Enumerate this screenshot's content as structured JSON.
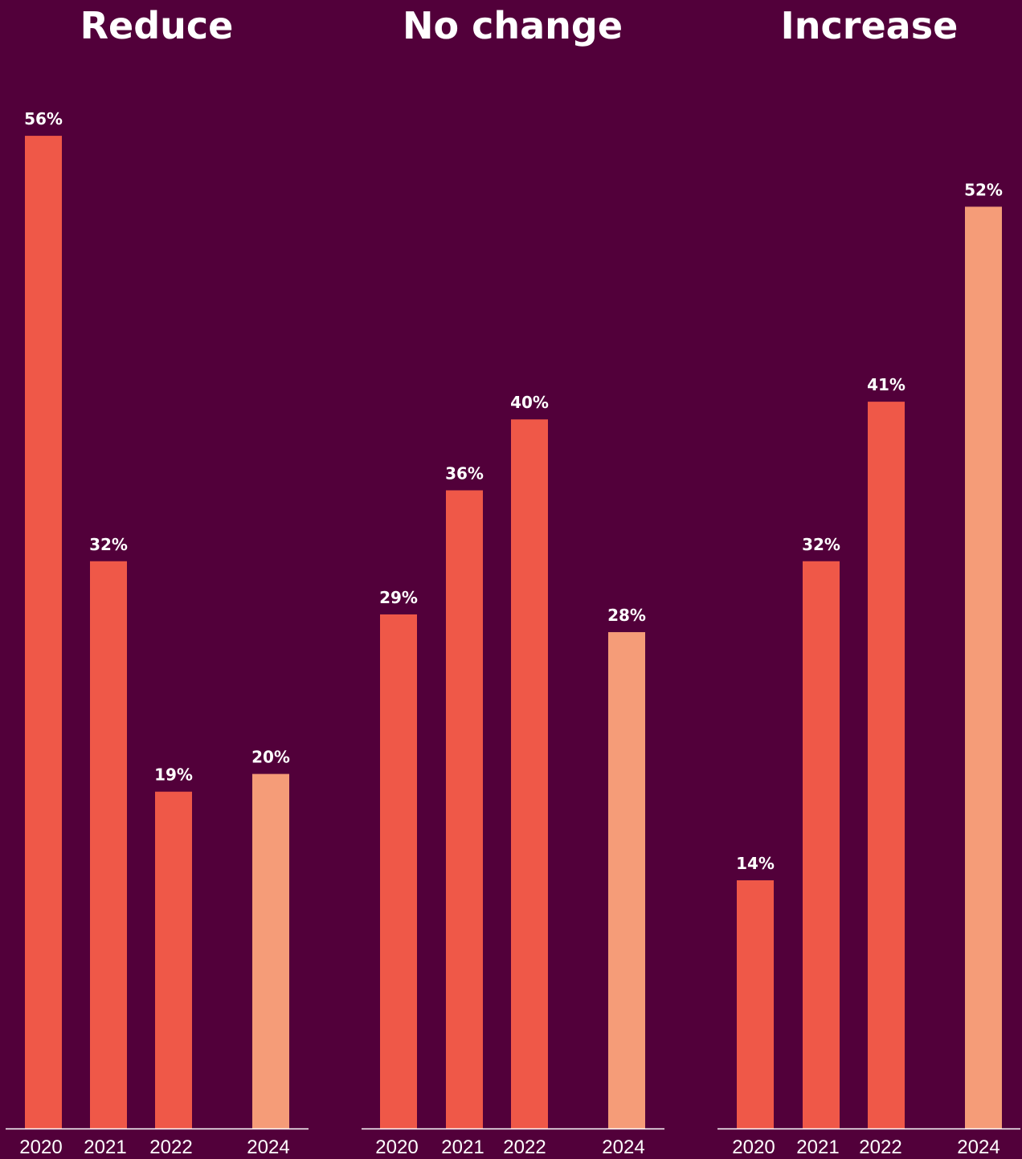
{
  "colors": {
    "background": "#52003a",
    "bar_past": "#ef5848",
    "bar_latest": "#f59c78",
    "axis": "#ffffff",
    "text": "#ffffff"
  },
  "chart_data": [
    {
      "type": "bar",
      "title": "Reduce",
      "categories": [
        "2020",
        "2021",
        "2022",
        "2024"
      ],
      "values": [
        56,
        32,
        19,
        20
      ],
      "value_labels": [
        "56%",
        "32%",
        "19%",
        "20%"
      ],
      "ylim": [
        0,
        56
      ],
      "grid": false,
      "legend": "none"
    },
    {
      "type": "bar",
      "title": "No change",
      "categories": [
        "2020",
        "2021",
        "2022",
        "2024"
      ],
      "values": [
        29,
        36,
        40,
        28
      ],
      "value_labels": [
        "29%",
        "36%",
        "40%",
        "28%"
      ],
      "ylim": [
        0,
        56
      ],
      "grid": false,
      "legend": "none"
    },
    {
      "type": "bar",
      "title": "Increase",
      "categories": [
        "2020",
        "2021",
        "2022",
        "2024"
      ],
      "values": [
        14,
        32,
        41,
        52
      ],
      "value_labels": [
        "14%",
        "32%",
        "41%",
        "52%"
      ],
      "ylim": [
        0,
        56
      ],
      "grid": false,
      "legend": "none"
    }
  ]
}
